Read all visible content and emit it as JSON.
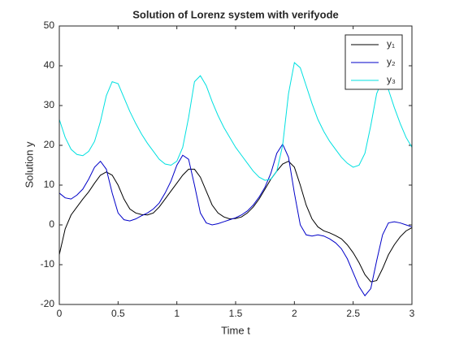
{
  "chart_data": {
    "type": "line",
    "title": "Solution of Lorenz system with verifyode",
    "xlabel": "Time t",
    "ylabel": "Solution y",
    "x": [
      0,
      0.05,
      0.1,
      0.15,
      0.2,
      0.25,
      0.3,
      0.35,
      0.4,
      0.45,
      0.5,
      0.55,
      0.6,
      0.65,
      0.7,
      0.75,
      0.8,
      0.85,
      0.9,
      0.95,
      1,
      1.05,
      1.1,
      1.15,
      1.2,
      1.25,
      1.3,
      1.35,
      1.4,
      1.45,
      1.5,
      1.55,
      1.6,
      1.65,
      1.7,
      1.75,
      1.8,
      1.85,
      1.9,
      1.95,
      2,
      2.05,
      2.1,
      2.15,
      2.2,
      2.25,
      2.3,
      2.35,
      2.4,
      2.45,
      2.5,
      2.55,
      2.6,
      2.65,
      2.7,
      2.75,
      2.8,
      2.85,
      2.9,
      2.95,
      3
    ],
    "series": [
      {
        "name": "y₁",
        "color": "#000000",
        "values": [
          -7.5,
          -1,
          2.5,
          4.5,
          6.5,
          8.3,
          10.5,
          12.5,
          13.3,
          12.5,
          10,
          6.5,
          4,
          3,
          2.6,
          2.5,
          3,
          4.5,
          6.5,
          8.5,
          10.5,
          12.5,
          14,
          14,
          12,
          8.5,
          5,
          3,
          2,
          1.5,
          1.6,
          2,
          3,
          4.5,
          6.5,
          9,
          11.5,
          13.5,
          15.3,
          16,
          14.5,
          10,
          5,
          1.5,
          -0.5,
          -1.5,
          -2,
          -2.7,
          -3.5,
          -5,
          -7,
          -9.5,
          -12.5,
          -14.3,
          -14,
          -11,
          -7.5,
          -5,
          -3,
          -1.5,
          -0.7
        ]
      },
      {
        "name": "y₂",
        "color": "#0000c8",
        "values": [
          8,
          6.8,
          6.5,
          7.5,
          9,
          11.5,
          14.5,
          16,
          14,
          8,
          3,
          1.3,
          1,
          1.5,
          2.3,
          3,
          4,
          5.5,
          8,
          11,
          15,
          17.5,
          16.5,
          10,
          3,
          0.5,
          0,
          0.3,
          0.8,
          1.3,
          1.8,
          2.5,
          3.5,
          5,
          7,
          9.5,
          13,
          18,
          20.3,
          17,
          8,
          0,
          -2.5,
          -2.8,
          -2.5,
          -2.8,
          -3.5,
          -4.5,
          -6,
          -8.5,
          -12,
          -15.5,
          -17.8,
          -16,
          -9,
          -2.5,
          0.5,
          0.8,
          0.5,
          0,
          -0.5
        ]
      },
      {
        "name": "y₃",
        "color": "#00e0e0",
        "values": [
          26.5,
          22,
          19,
          17.7,
          17.4,
          18.5,
          21,
          26,
          32.5,
          36,
          35.5,
          32,
          28.5,
          25.5,
          22.8,
          20.5,
          18.5,
          16.5,
          15.3,
          15,
          16,
          19.5,
          27,
          36,
          37.5,
          35,
          31,
          27.5,
          24.5,
          22,
          19.5,
          17.5,
          15.5,
          13.5,
          12,
          11.2,
          11.5,
          13.5,
          20,
          33,
          40.8,
          39.5,
          35,
          30.5,
          26.5,
          23.5,
          21,
          19,
          17,
          15.5,
          14.5,
          15,
          18,
          25,
          33,
          36.5,
          34,
          29.5,
          25.5,
          22,
          19.5
        ]
      }
    ],
    "xlim": [
      0,
      3
    ],
    "xticks": [
      0,
      0.5,
      1,
      1.5,
      2,
      2.5,
      3
    ],
    "ylim": [
      -20,
      50
    ],
    "yticks": [
      -20,
      -10,
      0,
      10,
      20,
      30,
      40,
      50
    ],
    "legend": "northeast"
  }
}
